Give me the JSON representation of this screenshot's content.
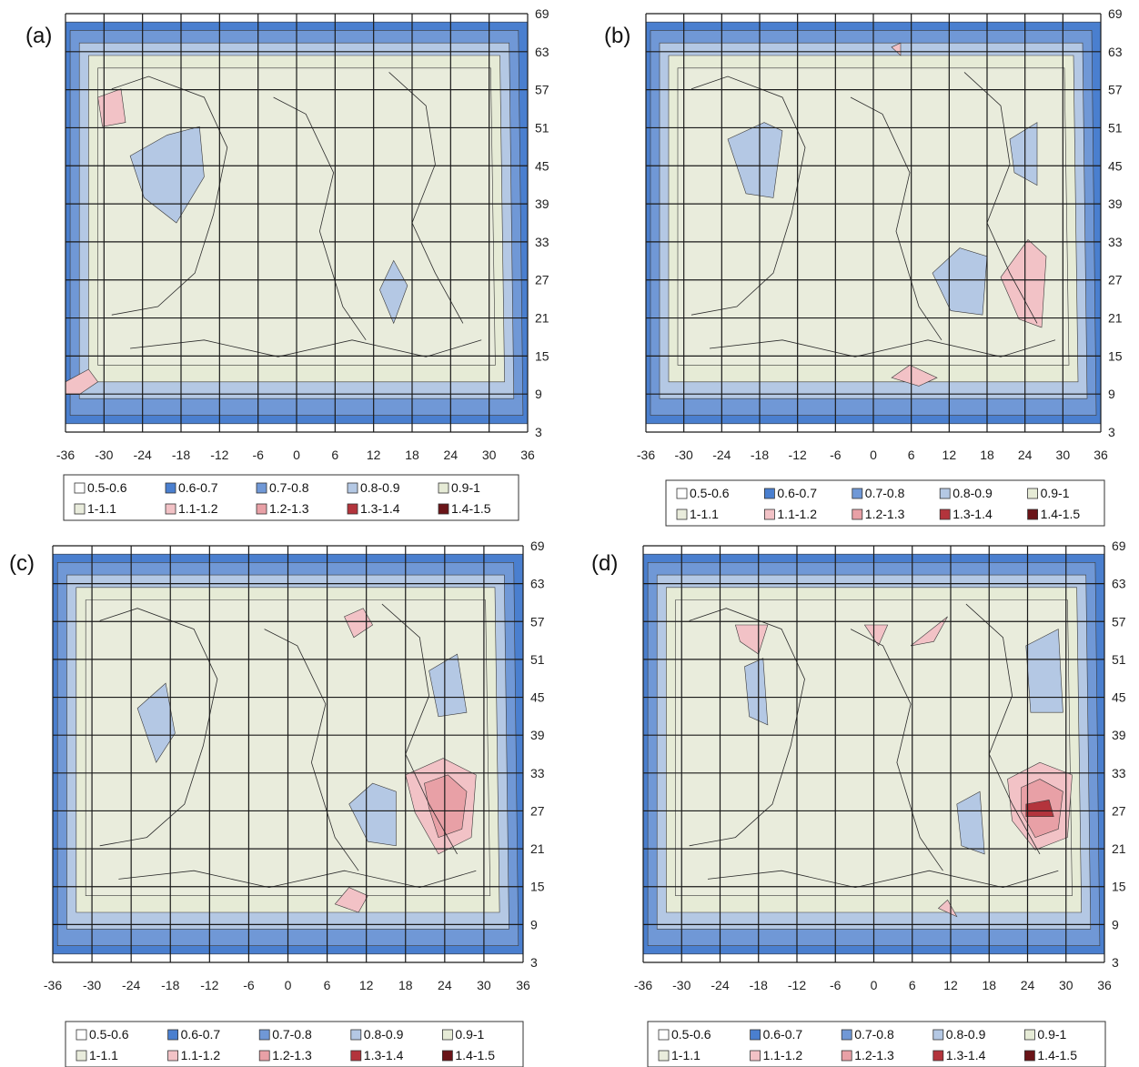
{
  "chart_data": [
    {
      "type": "heatmap",
      "panel_label": "(a)",
      "x_ticks": [
        "-36",
        "-30",
        "-24",
        "-18",
        "-12",
        "-6",
        "0",
        "6",
        "12",
        "18",
        "24",
        "30",
        "36"
      ],
      "y_ticks": [
        "69",
        "63",
        "57",
        "51",
        "45",
        "39",
        "33",
        "27",
        "21",
        "15",
        "9",
        "3"
      ],
      "xlim": [
        -36,
        36
      ],
      "ylim": [
        3,
        69
      ],
      "legend": [
        "0.5-0.6",
        "0.6-0.7",
        "0.7-0.8",
        "0.8-0.9",
        "0.9-1",
        "1-1.1",
        "1.1-1.2",
        "1.2-1.3",
        "1.3-1.4",
        "1.4-1.5"
      ],
      "grid": true
    },
    {
      "type": "heatmap",
      "panel_label": "(b)",
      "x_ticks": [
        "-36",
        "-30",
        "-24",
        "-18",
        "-12",
        "-6",
        "0",
        "6",
        "12",
        "18",
        "24",
        "30",
        "36"
      ],
      "y_ticks": [
        "69",
        "63",
        "57",
        "51",
        "45",
        "39",
        "33",
        "27",
        "21",
        "15",
        "9",
        "3"
      ],
      "xlim": [
        -36,
        36
      ],
      "ylim": [
        3,
        69
      ],
      "legend": [
        "0.5-0.6",
        "0.6-0.7",
        "0.7-0.8",
        "0.8-0.9",
        "0.9-1",
        "1-1.1",
        "1.1-1.2",
        "1.2-1.3",
        "1.3-1.4",
        "1.4-1.5"
      ],
      "grid": true
    },
    {
      "type": "heatmap",
      "panel_label": "(c)",
      "x_ticks": [
        "-36",
        "-30",
        "-24",
        "-18",
        "-12",
        "-6",
        "0",
        "6",
        "12",
        "18",
        "24",
        "30",
        "36"
      ],
      "y_ticks": [
        "69",
        "63",
        "57",
        "51",
        "45",
        "39",
        "33",
        "27",
        "21",
        "15",
        "9",
        "3"
      ],
      "xlim": [
        -36,
        36
      ],
      "ylim": [
        3,
        69
      ],
      "legend": [
        "0.5-0.6",
        "0.6-0.7",
        "0.7-0.8",
        "0.8-0.9",
        "0.9-1",
        "1-1.1",
        "1.1-1.2",
        "1.2-1.3",
        "1.3-1.4",
        "1.4-1.5"
      ],
      "grid": true
    },
    {
      "type": "heatmap",
      "panel_label": "(d)",
      "x_ticks": [
        "-36",
        "-30",
        "-24",
        "-18",
        "-12",
        "-6",
        "0",
        "6",
        "12",
        "18",
        "24",
        "30",
        "36"
      ],
      "y_ticks": [
        "69",
        "63",
        "57",
        "51",
        "45",
        "39",
        "33",
        "27",
        "21",
        "15",
        "9",
        "3"
      ],
      "xlim": [
        -36,
        36
      ],
      "ylim": [
        3,
        69
      ],
      "legend": [
        "0.5-0.6",
        "0.6-0.7",
        "0.7-0.8",
        "0.8-0.9",
        "0.9-1",
        "1-1.1",
        "1.1-1.2",
        "1.2-1.3",
        "1.3-1.4",
        "1.4-1.5"
      ],
      "grid": true
    }
  ],
  "legend_colors": {
    "0.5-0.6": "#ffffff",
    "0.6-0.7": "#4a7fcf",
    "0.7-0.8": "#7098d6",
    "0.8-0.9": "#b4c8e4",
    "0.9-1": "#e6ebd6",
    "1-1.1": "#e9ecdc",
    "1.1-1.2": "#f2c2c6",
    "1.2-1.3": "#e8a0a6",
    "1.3-1.4": "#b3343c",
    "1.4-1.5": "#6a1418"
  }
}
